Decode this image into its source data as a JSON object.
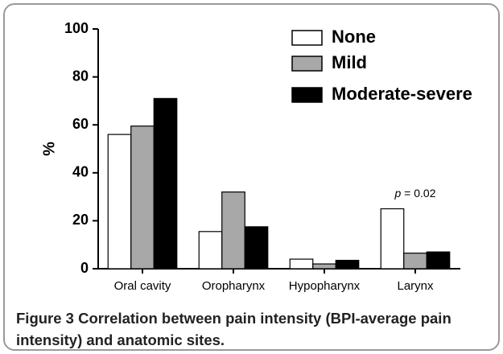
{
  "chart_data": {
    "type": "bar",
    "ylabel": "%",
    "categories": [
      "Oral cavity",
      "Oropharynx",
      "Hypopharynx",
      "Larynx"
    ],
    "series": [
      {
        "name": "None",
        "color": "#ffffff",
        "values": [
          56,
          15.5,
          4,
          25
        ]
      },
      {
        "name": "Mild",
        "color": "#a8a8a8",
        "values": [
          59.5,
          32,
          2,
          6.5
        ]
      },
      {
        "name": "Moderate-severe",
        "color": "#000000",
        "values": [
          71,
          17.5,
          3.5,
          7
        ]
      }
    ],
    "ylim": [
      0,
      100
    ],
    "yticks": [
      0,
      20,
      40,
      60,
      80,
      100
    ],
    "annotation": {
      "label": "p",
      "text": "= 0.02"
    },
    "caption": {
      "label": "Figure 3",
      "text": "Correlation between pain intensity (BPI-average pain intensity) and anatomic sites."
    }
  }
}
